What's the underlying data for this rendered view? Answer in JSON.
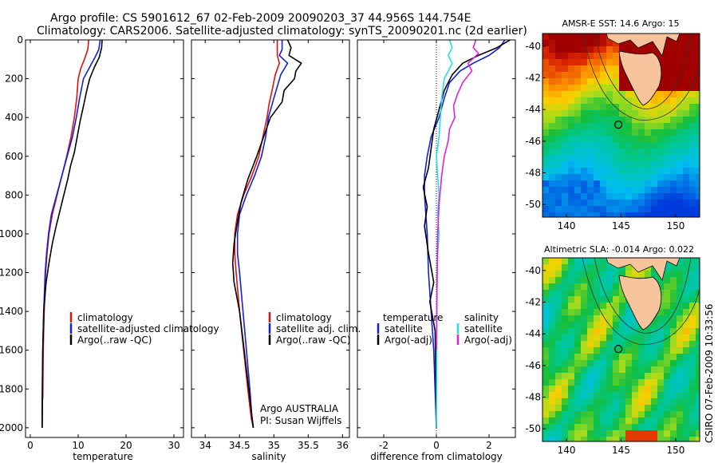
{
  "title": {
    "line1": "Argo profile: CS 5901612_67 02-Feb-2009 20090203_37 44.956S 144.754E",
    "line2": "Climatology: CARS2006. Satellite-adjusted climatology: synTS_20090201.nc (2d earlier)"
  },
  "side_text": "CSIRO 07-Feb-2009 10:33:56",
  "credit": {
    "line1": "Argo AUSTRALIA",
    "line2": "PI: Susan Wijffels"
  },
  "colors": {
    "climatology": "#e01010",
    "satellite": "#1020e0",
    "argo": "#000000",
    "sal_satellite": "#20e0f0",
    "sal_argo": "#e020e0"
  },
  "chart_data": [
    {
      "type": "line",
      "xlabel": "temperature",
      "xlim": [
        -1,
        32
      ],
      "ylim": [
        0,
        2050
      ],
      "y_reversed": true,
      "xticks": [
        0,
        10,
        20,
        30
      ],
      "yticks": [
        0,
        200,
        400,
        600,
        800,
        1000,
        1200,
        1400,
        1600,
        1800,
        2000
      ],
      "legend": {
        "position": "lower-middle",
        "entries": [
          "climatology",
          "satellite-adjusted climatology",
          "Argo(..raw -QC)"
        ]
      },
      "series": [
        {
          "name": "climatology",
          "color": "#e01010",
          "x": [
            12.2,
            12.0,
            11.3,
            10.5,
            10.0,
            9.7,
            9.2,
            8.5,
            7.6,
            6.6,
            5.6,
            4.6,
            3.9,
            3.5,
            3.2,
            2.9,
            2.7,
            2.6
          ],
          "y": [
            0,
            50,
            100,
            150,
            200,
            300,
            400,
            500,
            600,
            700,
            800,
            900,
            1000,
            1100,
            1200,
            1400,
            1600,
            1850
          ]
        },
        {
          "name": "satellite-adjusted climatology",
          "color": "#1020e0",
          "x": [
            14.6,
            14.3,
            13.3,
            12.2,
            11.1,
            10.3,
            9.6,
            8.8,
            7.7,
            6.6,
            5.5,
            4.4,
            3.8,
            3.4,
            3.1,
            2.8,
            2.6,
            2.5
          ],
          "y": [
            0,
            50,
            100,
            150,
            200,
            300,
            400,
            500,
            600,
            700,
            800,
            900,
            1000,
            1100,
            1200,
            1400,
            1600,
            2000
          ]
        },
        {
          "name": "Argo(..raw -QC)",
          "color": "#000000",
          "x": [
            15.0,
            14.9,
            14.4,
            13.4,
            12.4,
            11.8,
            11.2,
            10.4,
            9.8,
            9.2,
            8.4,
            7.8,
            7.0,
            6.2,
            5.4,
            4.6,
            3.9,
            3.3,
            2.8,
            2.6,
            2.5,
            2.45
          ],
          "y": [
            0,
            40,
            90,
            140,
            200,
            260,
            330,
            420,
            500,
            580,
            650,
            720,
            800,
            880,
            960,
            1050,
            1150,
            1250,
            1400,
            1600,
            1800,
            2000
          ]
        }
      ]
    },
    {
      "type": "line",
      "xlabel": "salinity",
      "xlim": [
        33.8,
        36.1
      ],
      "ylim": [
        0,
        2050
      ],
      "y_reversed": true,
      "xticks": [
        34,
        34.5,
        35,
        35.5,
        36
      ],
      "legend": {
        "position": "lower-middle",
        "entries": [
          "climatology",
          "satellite adj. clim.",
          "Argo(..raw -QC)"
        ]
      },
      "series": [
        {
          "name": "climatology",
          "color": "#e01010",
          "x": [
            35.05,
            35.05,
            35.08,
            35.02,
            34.98,
            34.93,
            34.9,
            34.84,
            34.78,
            34.68,
            34.56,
            34.47,
            34.43,
            34.43,
            34.45,
            34.5,
            34.56,
            34.62,
            34.67,
            34.7
          ],
          "y": [
            0,
            80,
            120,
            180,
            250,
            330,
            400,
            500,
            600,
            700,
            800,
            900,
            1000,
            1100,
            1200,
            1400,
            1600,
            1800,
            1950,
            2000
          ]
        },
        {
          "name": "satellite adj. clim.",
          "color": "#1020e0",
          "x": [
            35.12,
            35.12,
            35.08,
            35.2,
            35.1,
            35.0,
            34.92,
            34.88,
            34.82,
            34.72,
            34.6,
            34.5,
            34.47,
            34.47,
            34.5,
            34.55,
            34.6,
            34.65,
            34.68,
            34.7
          ],
          "y": [
            0,
            50,
            80,
            120,
            180,
            300,
            400,
            500,
            600,
            700,
            800,
            900,
            1000,
            1100,
            1200,
            1400,
            1600,
            1800,
            1950,
            2000
          ]
        },
        {
          "name": "Argo(..raw -QC)",
          "color": "#000000",
          "x": [
            35.2,
            35.25,
            35.22,
            35.4,
            35.32,
            35.3,
            35.15,
            35.12,
            34.95,
            34.85,
            34.75,
            34.62,
            34.52,
            34.46,
            34.42,
            34.4,
            34.42,
            34.5,
            34.55,
            34.6,
            34.65,
            34.7
          ],
          "y": [
            0,
            40,
            80,
            120,
            160,
            200,
            260,
            320,
            400,
            500,
            600,
            720,
            840,
            960,
            1050,
            1150,
            1250,
            1400,
            1550,
            1700,
            1850,
            2000
          ]
        }
      ]
    },
    {
      "type": "line",
      "xlabel": "difference from climatology",
      "xlim": [
        -3.0,
        3.0
      ],
      "ylim": [
        0,
        2050
      ],
      "y_reversed": true,
      "xticks": [
        -2,
        0,
        2
      ],
      "zero_line": true,
      "legend": {
        "position": "lower-middle",
        "headers": [
          "temperature",
          "salinity"
        ],
        "entries": [
          "satellite",
          "Argo(-adj)",
          "satellite",
          "Argo(-adj)"
        ]
      },
      "series": [
        {
          "name": "satellite",
          "group": "temperature",
          "color": "#1020e0",
          "x": [
            2.6,
            2.4,
            2.0,
            1.4,
            0.9,
            0.5,
            0.3,
            0.1,
            -0.2,
            -0.35,
            -0.45,
            -0.45,
            -0.4,
            -0.35,
            -0.3,
            -0.2,
            -0.1,
            0.0
          ],
          "y": [
            0,
            40,
            80,
            120,
            160,
            220,
            300,
            400,
            500,
            600,
            700,
            800,
            900,
            1000,
            1200,
            1400,
            1600,
            2000
          ]
        },
        {
          "name": "Argo(-adj)",
          "group": "temperature",
          "color": "#000000",
          "x": [
            2.8,
            2.3,
            1.6,
            1.0,
            0.6,
            0.3,
            0.1,
            -0.1,
            -0.2,
            -0.3,
            -0.5,
            -0.35,
            -0.45,
            -0.3,
            -0.1,
            -0.25,
            -0.05,
            0.0
          ],
          "y": [
            0,
            40,
            80,
            120,
            180,
            260,
            360,
            460,
            560,
            660,
            760,
            860,
            960,
            1100,
            1250,
            1350,
            1500,
            2000
          ]
        },
        {
          "name": "satellite",
          "group": "salinity",
          "color": "#20e0f0",
          "x": [
            0.5,
            0.6,
            0.45,
            0.6,
            0.3,
            0.2,
            0.15,
            0.1,
            0.0,
            0.05,
            0.1,
            0.05,
            0.1,
            0.05,
            0.03,
            0.02,
            0.0
          ],
          "y": [
            0,
            40,
            80,
            120,
            200,
            300,
            400,
            500,
            600,
            700,
            800,
            900,
            1000,
            1100,
            1200,
            1400,
            2000
          ]
        },
        {
          "name": "Argo(-adj)",
          "group": "salinity",
          "color": "#e020e0",
          "x": [
            1.5,
            1.4,
            1.6,
            1.2,
            1.35,
            1.0,
            0.8,
            0.65,
            0.7,
            0.5,
            0.45,
            0.3,
            0.2,
            0.1,
            0.05,
            0.02,
            0.0
          ],
          "y": [
            0,
            40,
            70,
            120,
            160,
            220,
            280,
            340,
            400,
            460,
            520,
            600,
            700,
            850,
            1000,
            1300,
            1600
          ]
        }
      ]
    },
    {
      "type": "heatmap",
      "title": "AMSR-E SST: 14.6 Argo: 15",
      "xlim": [
        137.8,
        152.2
      ],
      "ylim": [
        -50.8,
        -39.2
      ],
      "xticks": [
        140,
        145,
        150
      ],
      "yticks": [
        -40,
        -42,
        -44,
        -46,
        -48,
        -50
      ],
      "marker": {
        "lon": 144.754,
        "lat": -44.956
      }
    },
    {
      "type": "heatmap",
      "title": "Altimetric SLA: -0.014 Argo: 0.022",
      "xlim": [
        137.8,
        152.2
      ],
      "ylim": [
        -50.8,
        -39.2
      ],
      "xticks": [
        140,
        145,
        150
      ],
      "yticks": [
        -40,
        -42,
        -44,
        -46,
        -48,
        -50
      ],
      "marker": {
        "lon": 144.754,
        "lat": -44.956
      }
    }
  ]
}
